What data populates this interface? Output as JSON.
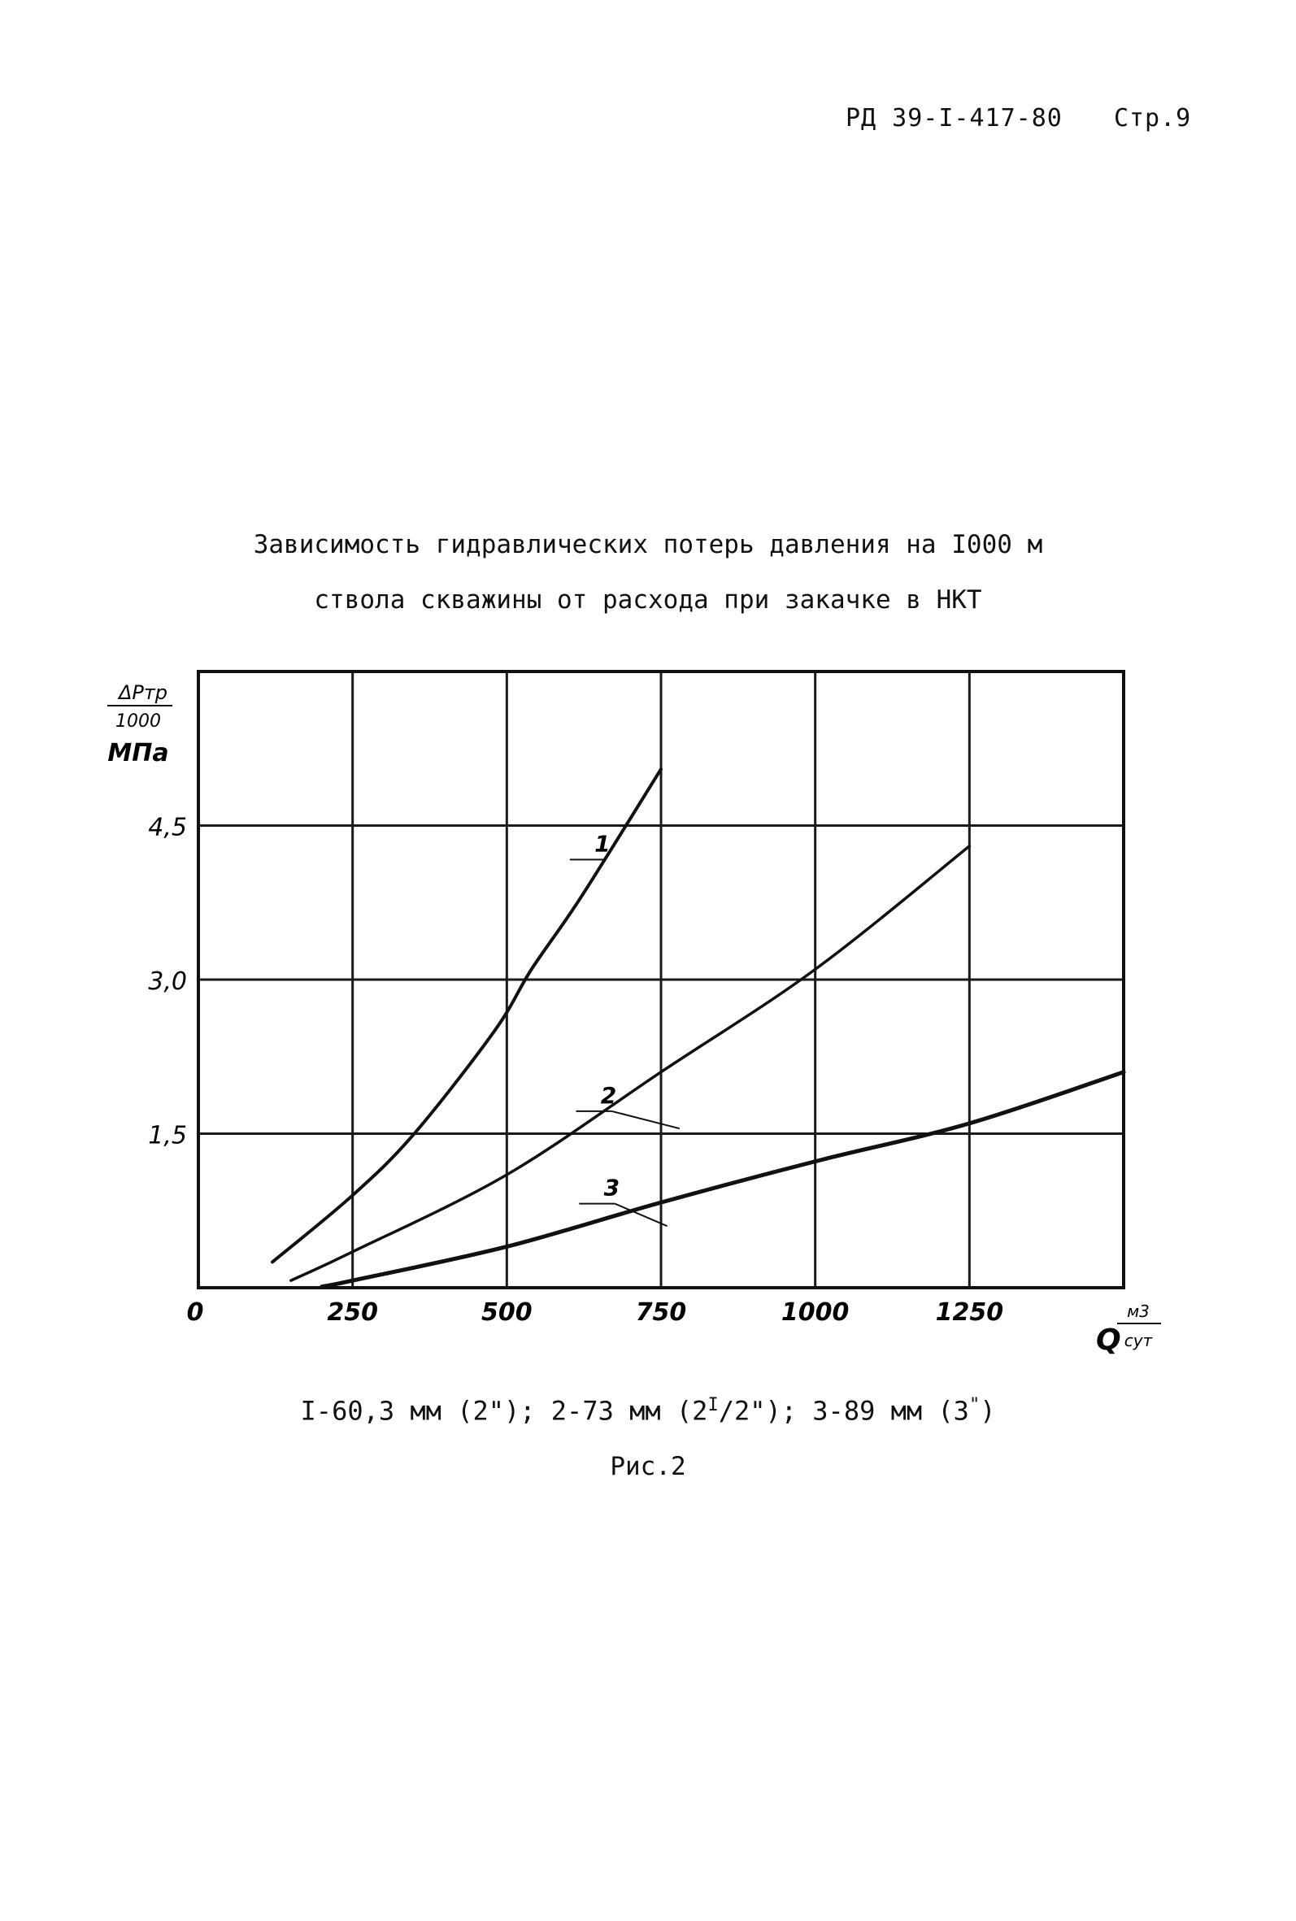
{
  "header": {
    "doc_code": "РД 39-I-417-80",
    "page": "Стр.9"
  },
  "title_line1": "Зависимость гидравлических потерь давления на I000 м",
  "title_line2": "ствола скважины от расхода при закачке в НКТ",
  "legend_text": {
    "part1": "I-60,3 мм (2\"); 2-73 мм (2",
    "sup1": "I",
    "part2": "/2\"); 3-89 мм (3",
    "sup2": "\"",
    "part3": ")"
  },
  "figure_label": "Рис.2",
  "chart_data": {
    "type": "line",
    "xlabel": {
      "main": "Q",
      "unit_top": "м3",
      "unit_bottom": "сут"
    },
    "ylabel": {
      "main": "ΔPтр",
      "denominator": "1000",
      "unit": "МПа"
    },
    "xlim": [
      0,
      1500
    ],
    "ylim": [
      0,
      6.0
    ],
    "x_ticks": [
      0,
      250,
      500,
      750,
      1000,
      1250
    ],
    "x_tick_labels": [
      "0",
      "250",
      "500",
      "750",
      "1000",
      "1250"
    ],
    "y_ticks": [
      1.5,
      3.0,
      4.5
    ],
    "y_tick_labels": [
      "1,5",
      "3,0",
      "4,5"
    ],
    "grid": true,
    "series": [
      {
        "name": "1",
        "points": [
          [
            120,
            0.25
          ],
          [
            250,
            0.9
          ],
          [
            350,
            1.5
          ],
          [
            480,
            2.5
          ],
          [
            540,
            3.1
          ],
          [
            620,
            3.8
          ],
          [
            750,
            5.05
          ]
        ]
      },
      {
        "name": "2",
        "points": [
          [
            150,
            0.07
          ],
          [
            250,
            0.35
          ],
          [
            500,
            1.1
          ],
          [
            750,
            2.1
          ],
          [
            1000,
            3.1
          ],
          [
            1250,
            4.3
          ]
        ]
      },
      {
        "name": "3",
        "points": [
          [
            200,
            0.01
          ],
          [
            250,
            0.07
          ],
          [
            500,
            0.4
          ],
          [
            750,
            0.83
          ],
          [
            1000,
            1.23
          ],
          [
            1250,
            1.6
          ],
          [
            1500,
            2.1
          ]
        ]
      }
    ],
    "annotations": [
      {
        "text": "1",
        "x": 655,
        "y": 4.2,
        "series": 0,
        "anchor": [
          745,
          5.0
        ]
      },
      {
        "text": "2",
        "x": 665,
        "y": 1.75,
        "series": 1,
        "anchor": [
          780,
          1.55
        ]
      },
      {
        "text": "3",
        "x": 670,
        "y": 0.85,
        "series": 2,
        "anchor": [
          760,
          0.6
        ]
      }
    ],
    "colors": {
      "line": "#111111",
      "grid": "#1a1a1a",
      "frame": "#111111"
    }
  }
}
